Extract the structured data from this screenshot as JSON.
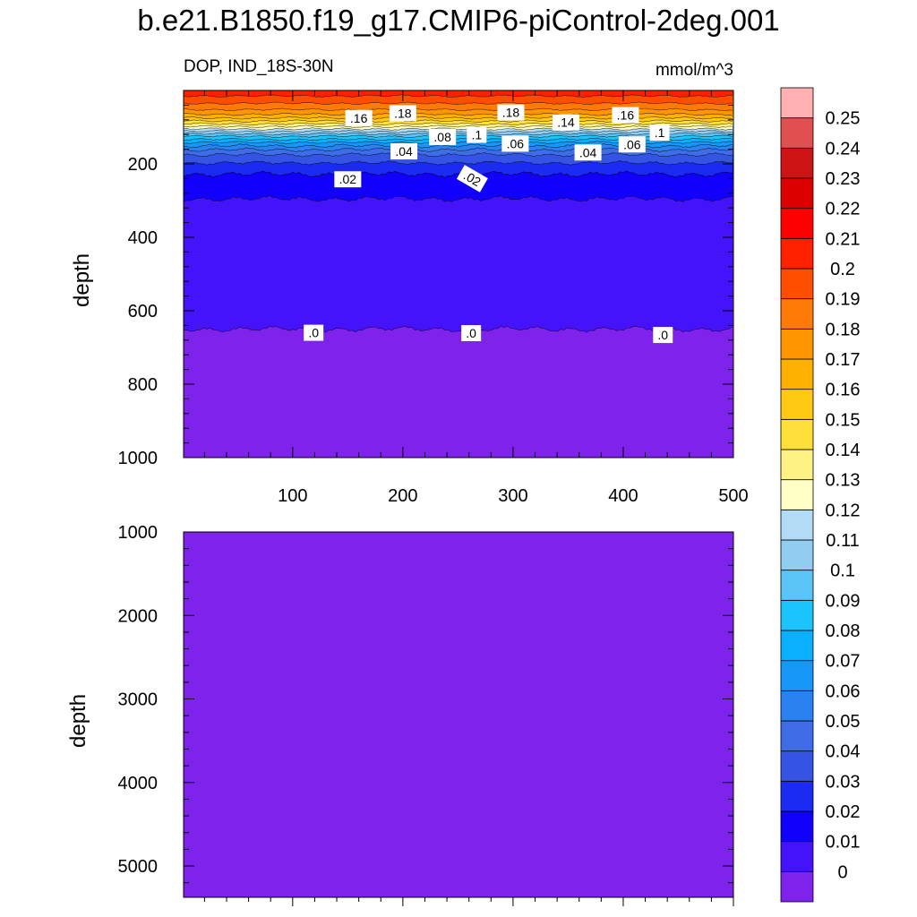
{
  "title": "b.e21.B1850.f19_g17.CMIP6-piControl-2deg.001",
  "left_subtitle": "DOP, IND_18S-30N",
  "right_subtitle": "mmol/m^3",
  "colors": {
    "scale": [
      "#7f22ec",
      "#4413fa",
      "#1100fb",
      "#1c2bf1",
      "#3554e4",
      "#3f6de7",
      "#2a82f0",
      "#1797f7",
      "#0ab0fd",
      "#1bc4fd",
      "#5bc4f7",
      "#90cdf0",
      "#b2dbf5",
      "#ffffc6",
      "#fff285",
      "#ffdf3a",
      "#ffc914",
      "#ffb000",
      "#ff9600",
      "#ff7a06",
      "#ff4e00",
      "#ff2000",
      "#ff0000",
      "#dd0000",
      "#cc1414",
      "#e05050",
      "#ffb0b0"
    ],
    "frame": "#000000"
  },
  "chart_data": [
    {
      "type": "heatmap",
      "title": "b.e21.B1850.f19_g17.CMIP6-piControl-2deg.001",
      "left_subtitle": "DOP, IND_18S-30N",
      "right_subtitle": "mmol/m^3",
      "xlabel": "",
      "ylabel": "depth",
      "xlim": [
        1,
        500
      ],
      "ylim": [
        1000,
        0
      ],
      "x_ticks": [
        100,
        200,
        300,
        400,
        500
      ],
      "y_ticks": [
        200,
        400,
        600,
        800,
        1000
      ],
      "depth_levels": [
        5,
        15,
        25,
        35,
        45,
        55,
        65,
        75,
        85,
        95,
        105,
        115,
        125,
        135,
        145,
        155,
        165,
        175,
        190,
        210,
        235,
        265,
        300,
        350,
        400,
        500,
        600,
        650,
        700,
        800,
        1000
      ],
      "profile_dop": [
        0.205,
        0.2,
        0.195,
        0.19,
        0.185,
        0.178,
        0.17,
        0.16,
        0.148,
        0.135,
        0.12,
        0.105,
        0.09,
        0.078,
        0.066,
        0.056,
        0.047,
        0.04,
        0.033,
        0.025,
        0.018,
        0.013,
        0.0095,
        0.008,
        0.007,
        0.005,
        0.0025,
        0.0,
        -0.001,
        -0.002,
        -0.002
      ],
      "contour_labels": [
        {
          "text": ".16",
          "x": 160,
          "depth": 75
        },
        {
          "text": ".18",
          "x": 200,
          "depth": 62
        },
        {
          "text": ".18",
          "x": 298,
          "depth": 60
        },
        {
          "text": ".14",
          "x": 348,
          "depth": 87
        },
        {
          "text": ".16",
          "x": 402,
          "depth": 67
        },
        {
          "text": ".1",
          "x": 433,
          "depth": 115
        },
        {
          "text": ".08",
          "x": 236,
          "depth": 127
        },
        {
          "text": ".1",
          "x": 267,
          "depth": 121
        },
        {
          "text": ".06",
          "x": 302,
          "depth": 145
        },
        {
          "text": ".06",
          "x": 408,
          "depth": 147
        },
        {
          "text": ".04",
          "x": 201,
          "depth": 166
        },
        {
          "text": ".04",
          "x": 368,
          "depth": 169
        },
        {
          "text": ".02",
          "x": 150,
          "depth": 242
        },
        {
          "text": ".02",
          "x": 263,
          "depth": 240
        },
        {
          "text": ".0",
          "x": 119,
          "depth": 660
        },
        {
          "text": ".0",
          "x": 262,
          "depth": 661
        },
        {
          "text": ".0",
          "x": 436,
          "depth": 666
        }
      ]
    },
    {
      "type": "heatmap",
      "xlabel": "",
      "ylabel": "depth",
      "xlim": [
        1,
        500
      ],
      "ylim": [
        1000,
        5375
      ],
      "y_ticks": [
        1000,
        2000,
        3000,
        4000,
        5000
      ],
      "value_everywhere": -0.002
    },
    {
      "type": "colorbar",
      "levels": [
        0,
        0.01,
        0.02,
        0.03,
        0.04,
        0.05,
        0.06,
        0.07,
        0.08,
        0.09,
        0.1,
        0.11,
        0.12,
        0.13,
        0.14,
        0.15,
        0.16,
        0.17,
        0.18,
        0.19,
        0.2,
        0.21,
        0.22,
        0.23,
        0.24,
        0.25
      ],
      "labels": [
        "0",
        "0.01",
        "0.02",
        "0.03",
        "0.04",
        "0.05",
        "0.06",
        "0.07",
        "0.08",
        "0.09",
        "0.1",
        "0.11",
        "0.12",
        "0.13",
        "0.14",
        "0.15",
        "0.16",
        "0.17",
        "0.18",
        "0.19",
        "0.2",
        "0.21",
        "0.22",
        "0.23",
        "0.24",
        "0.25"
      ]
    }
  ]
}
